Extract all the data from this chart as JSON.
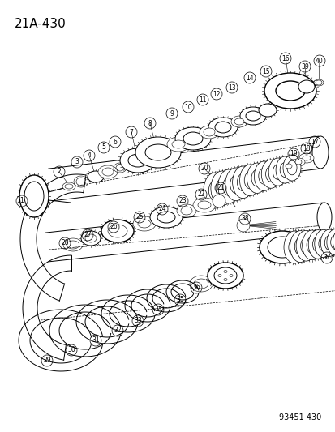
{
  "title": "21A-430",
  "footer": "93451 430",
  "bg_color": "#ffffff",
  "line_color": "#000000",
  "title_fontsize": 11,
  "footer_fontsize": 7,
  "fig_width": 4.14,
  "fig_height": 5.33,
  "dpi": 100,
  "label_r": 0.013,
  "label_fontsize": 5.5
}
